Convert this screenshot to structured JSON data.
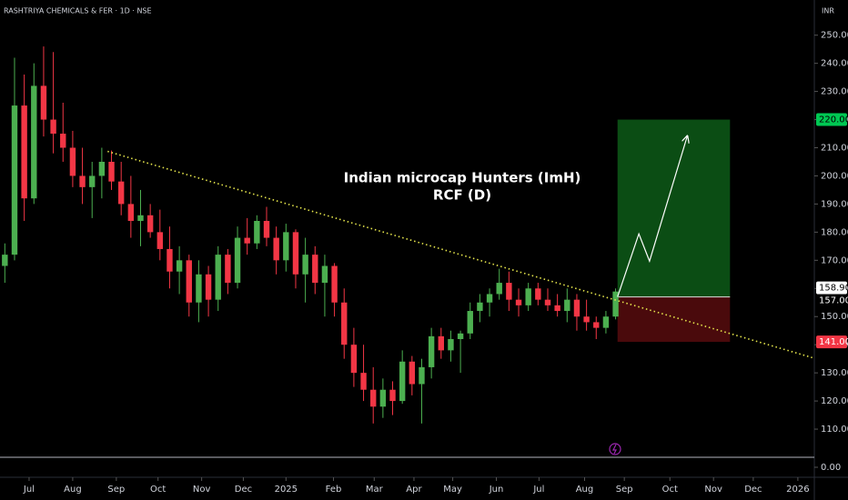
{
  "chart_data": {
    "type": "candlestick",
    "title": "RASHTRIYA CHEMICALS & FER · 1D · NSE",
    "currency": "INR",
    "annotation": [
      "Indian microcap Hunters (ImH)",
      "RCF (D)"
    ],
    "up_color": "#4caf50",
    "down_color": "#f23645",
    "xlim": [
      0,
      84
    ],
    "ylim": [
      100,
      262.5
    ],
    "xticks": [
      {
        "value": 3.0,
        "label": "Jul"
      },
      {
        "value": 7.5,
        "label": "Aug"
      },
      {
        "value": 12.0,
        "label": "Sep"
      },
      {
        "value": 16.3,
        "label": "Oct"
      },
      {
        "value": 20.8,
        "label": "Nov"
      },
      {
        "value": 25.1,
        "label": "Dec"
      },
      {
        "value": 29.5,
        "label": "2025"
      },
      {
        "value": 34.4,
        "label": "Feb"
      },
      {
        "value": 38.6,
        "label": "Mar"
      },
      {
        "value": 42.7,
        "label": "Apr"
      },
      {
        "value": 46.7,
        "label": "May"
      },
      {
        "value": 51.2,
        "label": "Jun"
      },
      {
        "value": 55.6,
        "label": "Jul"
      },
      {
        "value": 60.3,
        "label": "Aug"
      },
      {
        "value": 64.4,
        "label": "Sep"
      },
      {
        "value": 69.1,
        "label": "Oct"
      },
      {
        "value": 73.6,
        "label": "Nov"
      },
      {
        "value": 77.7,
        "label": "Dec"
      },
      {
        "value": 82.3,
        "label": "2026"
      }
    ],
    "yticks": [
      {
        "value": 110,
        "label": "110.00"
      },
      {
        "value": 120,
        "label": "120.00"
      },
      {
        "value": 130,
        "label": "130.00"
      },
      {
        "value": 140,
        "label": "140.00"
      },
      {
        "value": 150,
        "label": "150.00"
      },
      {
        "value": 160,
        "label": "160.00"
      },
      {
        "value": 170,
        "label": "170.00"
      },
      {
        "value": 180,
        "label": "180.00"
      },
      {
        "value": 190,
        "label": "190.00"
      },
      {
        "value": 200,
        "label": "200.00"
      },
      {
        "value": 210,
        "label": "210.00"
      },
      {
        "value": 220,
        "label": "220.00"
      },
      {
        "value": 230,
        "label": "230.00"
      },
      {
        "value": 240,
        "label": "240.00"
      },
      {
        "value": 250,
        "label": "250.00"
      }
    ],
    "lower_pane_yticks": [
      {
        "value": 0,
        "label": "0.00"
      }
    ],
    "x": [
      0.5,
      1.5,
      2.5,
      3.5,
      4.5,
      5.5,
      6.5,
      7.5,
      8.5,
      9.5,
      10.5,
      11.5,
      12.5,
      13.5,
      14.5,
      15.5,
      16.5,
      17.5,
      18.5,
      19.5,
      20.5,
      21.5,
      22.5,
      23.5,
      24.5,
      25.5,
      26.5,
      27.5,
      28.5,
      29.5,
      30.5,
      31.5,
      32.5,
      33.5,
      34.5,
      35.5,
      36.5,
      37.5,
      38.5,
      39.5,
      40.5,
      41.5,
      42.5,
      43.5,
      44.5,
      45.5,
      46.5,
      47.5,
      48.5,
      49.5,
      50.5,
      51.5,
      52.5,
      53.5,
      54.5,
      55.5,
      56.5,
      57.5,
      58.5,
      59.5,
      60.5,
      61.5,
      62.5,
      63.5
    ],
    "open": [
      168,
      172,
      225,
      192,
      232,
      220,
      215,
      210,
      200,
      196,
      200,
      205,
      198,
      190,
      184,
      186,
      180,
      174,
      166,
      170,
      155,
      165,
      156,
      172,
      162,
      178,
      176,
      184,
      178,
      170,
      180,
      165,
      172,
      162,
      168,
      155,
      140,
      130,
      124,
      118,
      124,
      120,
      134,
      126,
      132,
      143,
      138,
      142,
      144,
      152,
      155,
      158,
      162,
      156,
      154,
      160,
      156,
      154,
      152,
      156,
      150,
      148,
      146,
      150
    ],
    "high": [
      176,
      242,
      236,
      240,
      246,
      244,
      226,
      216,
      210,
      205,
      210,
      209,
      205,
      200,
      195,
      190,
      188,
      182,
      175,
      172,
      170,
      168,
      175,
      174,
      182,
      185,
      186,
      189,
      182,
      183,
      181,
      178,
      175,
      172,
      169,
      160,
      146,
      140,
      132,
      128,
      127,
      138,
      136,
      135,
      146,
      146,
      145,
      145,
      155,
      158,
      160,
      167,
      166,
      160,
      162,
      162,
      160,
      158,
      160,
      158,
      156,
      150,
      152,
      160
    ],
    "low": [
      162,
      170,
      184,
      190,
      214,
      208,
      205,
      196,
      190,
      185,
      192,
      195,
      186,
      178,
      175,
      178,
      170,
      160,
      158,
      150,
      148,
      150,
      152,
      158,
      160,
      172,
      174,
      175,
      165,
      166,
      160,
      155,
      158,
      150,
      150,
      135,
      125,
      120,
      112,
      114,
      115,
      119,
      122,
      112,
      128,
      135,
      134,
      130,
      142,
      148,
      150,
      156,
      152,
      150,
      152,
      154,
      152,
      150,
      148,
      145,
      145,
      142,
      144,
      149
    ],
    "close": [
      172,
      225,
      192,
      232,
      220,
      215,
      210,
      200,
      196,
      200,
      205,
      198,
      190,
      184,
      186,
      180,
      174,
      166,
      170,
      155,
      165,
      156,
      172,
      162,
      178,
      176,
      184,
      178,
      170,
      180,
      165,
      172,
      162,
      168,
      155,
      140,
      130,
      124,
      118,
      124,
      120,
      134,
      126,
      132,
      143,
      138,
      142,
      144,
      152,
      155,
      158,
      162,
      156,
      154,
      160,
      156,
      154,
      152,
      156,
      150,
      148,
      146,
      150,
      158.9
    ],
    "trendline": {
      "color": "#e6e64c",
      "x": [
        11.1,
        84
      ],
      "y": [
        208.7,
        135.2
      ]
    },
    "position": {
      "start_x": 63.7,
      "end_x": 75.3,
      "target": {
        "value": 220,
        "label": "220.00"
      },
      "entry": {
        "value": 157,
        "label": "157.00"
      },
      "stop": {
        "value": 141,
        "label": "141.00"
      }
    },
    "last_price": {
      "value": 158.9,
      "label": "158.90"
    },
    "projection": {
      "x": [
        63.7,
        65.9,
        67.0,
        70.9
      ],
      "y": [
        157,
        179.4,
        169.7,
        214.2
      ]
    }
  }
}
